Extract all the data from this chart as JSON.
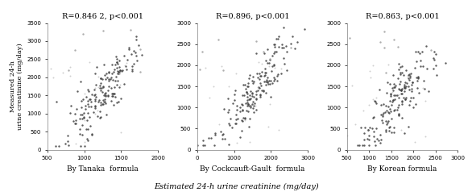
{
  "panels": [
    {
      "title": "R=0.846 2, p<0.001",
      "xlabel": "By Tanaka  formula",
      "xlim": [
        500,
        2000
      ],
      "ylim": [
        0,
        3500
      ],
      "xticks": [
        500,
        1000,
        1500,
        2000
      ],
      "yticks": [
        0,
        500,
        1000,
        1500,
        2000,
        2500,
        3000,
        3500
      ],
      "cockcroft_underline": false
    },
    {
      "title": "R=0.896, p<0.001",
      "xlabel": "By Cockcauft-Gault  formula",
      "xlim": [
        0,
        3000
      ],
      "ylim": [
        0,
        3000
      ],
      "xticks": [
        0,
        1000,
        2000,
        3000
      ],
      "yticks": [
        0,
        500,
        1000,
        1500,
        2000,
        2500,
        3000
      ],
      "cockcroft_underline": true
    },
    {
      "title": "R=0.863, p<0.001",
      "xlabel": "By Korean formula",
      "xlim": [
        500,
        3000
      ],
      "ylim": [
        0,
        3000
      ],
      "xticks": [
        500,
        1000,
        1500,
        2000,
        2500,
        3000
      ],
      "yticks": [
        0,
        500,
        1000,
        1500,
        2000,
        2500,
        3000
      ],
      "cockcroft_underline": false
    }
  ],
  "ylabel": "Measured 24-h\nurine creatinine (mg/day)",
  "bottom_xlabel": "Estimated 24-h urine creatinine (mg/day)",
  "background_color": "#ffffff",
  "scatter_color_dark": "#404040",
  "scatter_color_light": "#a0a0a0",
  "marker_size": 3,
  "seed": 42,
  "n_points": 180
}
